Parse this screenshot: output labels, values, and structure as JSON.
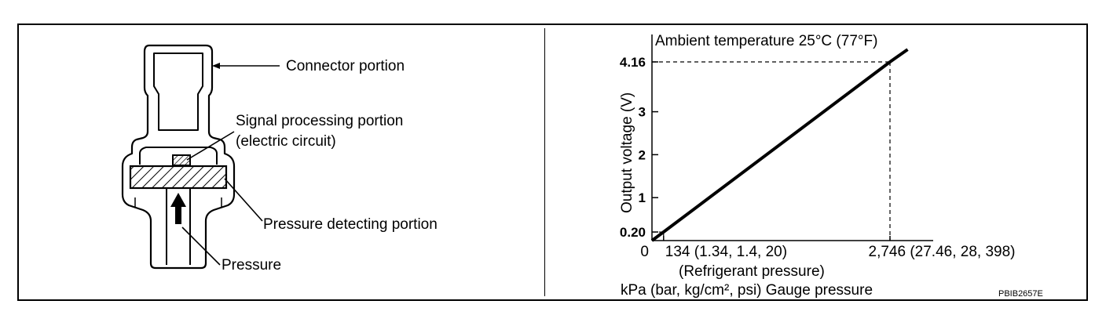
{
  "sensor": {
    "connector_label": "Connector portion",
    "signal_label_line1": "Signal processing portion",
    "signal_label_line2": "(electric circuit)",
    "pressure_detect_label": "Pressure detecting portion",
    "pressure_label": "Pressure"
  },
  "chart_data": {
    "type": "line",
    "title": "Ambient temperature 25°C (77°F)",
    "ylabel": "Output voltage (V)",
    "xlabel_line1": "(Refrigerant pressure)",
    "xlabel_line2": "kPa (bar, kg/cm², psi) Gauge pressure",
    "x_ticks": [
      "0",
      "134 (1.34, 1.4, 20)",
      "2,746 (27.46, 28, 398)"
    ],
    "y_ticks": [
      "0.20",
      "1",
      "2",
      "3",
      "4.16"
    ],
    "series": [
      {
        "x": [
          0,
          134,
          2746,
          2950
        ],
        "y": [
          0,
          0.2,
          4.16,
          4.45
        ]
      }
    ],
    "reference_points": [
      {
        "x": 134,
        "y": 0.2
      },
      {
        "x": 2746,
        "y": 4.16
      }
    ],
    "grid": false
  },
  "figure_code": "PBIB2657E"
}
